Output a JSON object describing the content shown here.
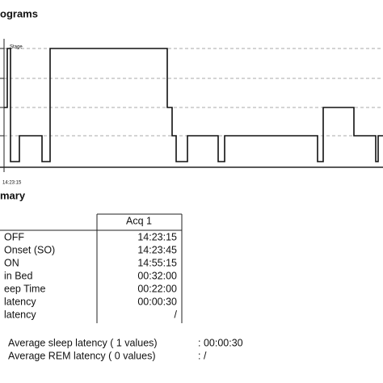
{
  "hypnogram": {
    "title": "ograms",
    "axis_label": "Stage",
    "start_time": "14:23:15"
  },
  "summary": {
    "title": "mary",
    "table": {
      "header": "Acq 1",
      "rows": [
        [
          "OFF",
          "14:23:15"
        ],
        [
          "Onset (SO)",
          "14:23:45"
        ],
        [
          "ON",
          "14:55:15"
        ],
        [
          "in Bed",
          "00:32:00"
        ],
        [
          "eep Time",
          "00:22:00"
        ],
        [
          " latency",
          "00:00:30"
        ],
        [
          "latency",
          "/"
        ]
      ]
    },
    "averages": [
      [
        "Average sleep latency ( 1 values)",
        ": 00:00:30"
      ],
      [
        "Average REM latency  ( 0 values)",
        ": /"
      ]
    ]
  }
}
